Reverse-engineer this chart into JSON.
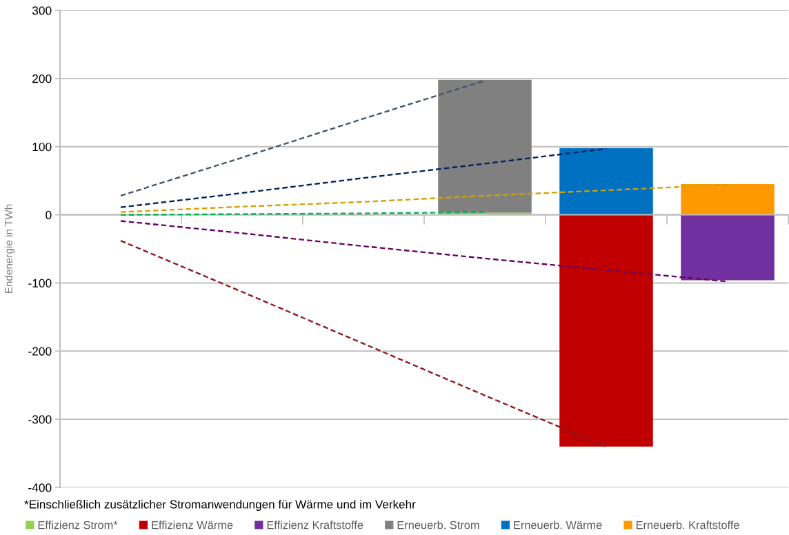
{
  "chart_data": {
    "type": "bar",
    "stacked": true,
    "categories": [
      null,
      null,
      null,
      null,
      null,
      null
    ],
    "ylabel": "Endenergie in TWh",
    "ylim": [
      -400,
      300
    ],
    "yticks": [
      -400,
      -300,
      -200,
      -100,
      0,
      100,
      200,
      300
    ],
    "grid": "y",
    "legend": "bottom",
    "tick_labels": "y",
    "line_style": "dashed",
    "annotations": [
      "*Einschließlich zusätzlicher Stromanwendungen für Wärme und im Verkehr"
    ],
    "series": [
      {
        "name": "Effizienz Strom*",
        "color": "#92d050",
        "values": [
          null,
          null,
          null,
          3,
          null,
          null
        ]
      },
      {
        "name": "Effizienz Wärme",
        "color": "#c00000",
        "values": [
          null,
          null,
          null,
          null,
          -340,
          null
        ]
      },
      {
        "name": "Effizienz Kraftstoffe",
        "color": "#7030a0",
        "values": [
          null,
          null,
          null,
          null,
          null,
          -96
        ]
      },
      {
        "name": "Erneuerb. Strom",
        "color": "#808080",
        "values": [
          null,
          null,
          null,
          195,
          null,
          null
        ]
      },
      {
        "name": "Erneuerb. Wärme",
        "color": "#0070c0",
        "values": [
          null,
          null,
          null,
          null,
          98,
          null
        ]
      },
      {
        "name": "Erneuerb. Kraftstoffe",
        "color": "#ff9900",
        "values": [
          null,
          null,
          null,
          null,
          null,
          45
        ]
      },
      {
        "type": "line",
        "color": "#44546a",
        "values": [
          28,
          84,
          141,
          197,
          null,
          null
        ]
      },
      {
        "type": "line",
        "color": "#002060",
        "values": [
          11,
          32,
          54,
          75,
          97,
          null
        ]
      },
      {
        "type": "line",
        "color": "#d4a000",
        "values": [
          4,
          12,
          19,
          28,
          36,
          44
        ]
      },
      {
        "type": "line",
        "color": "#00b050",
        "values": [
          0,
          1,
          2,
          4,
          null,
          null
        ]
      },
      {
        "type": "line",
        "color": "#660066",
        "values": [
          -9,
          -27,
          -46,
          -64,
          -81,
          -98
        ]
      },
      {
        "type": "line",
        "color": "#8b1a1a",
        "values": [
          -38,
          -113,
          -189,
          -265,
          -340,
          null
        ]
      }
    ]
  }
}
